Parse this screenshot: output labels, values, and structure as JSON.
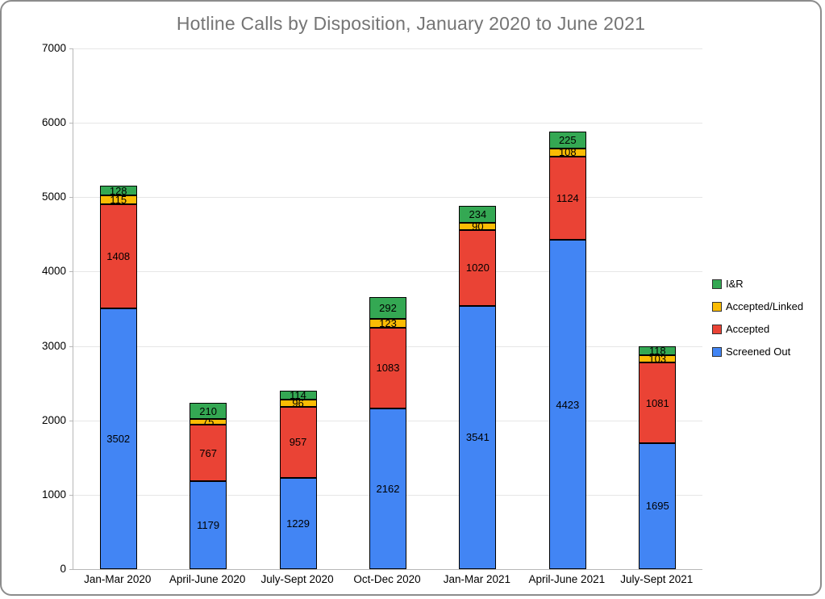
{
  "chart_data": {
    "type": "bar",
    "variant": "stacked-vertical",
    "title": "Hotline Calls by Disposition, January 2020 to June 2021",
    "title_color": "#757575",
    "categories": [
      "Jan-Mar 2020",
      "April-June 2020",
      "July-Sept 2020",
      "Oct-Dec 2020",
      "Jan-Mar 2021",
      "April-June 2021",
      "July-Sept 2021"
    ],
    "series": [
      {
        "name": "Screened Out",
        "color": "#4285f4",
        "values": [
          3502,
          1179,
          1229,
          2162,
          3541,
          4423,
          1695
        ]
      },
      {
        "name": "Accepted",
        "color": "#ea4335",
        "values": [
          1408,
          767,
          957,
          1083,
          1020,
          1124,
          1081
        ]
      },
      {
        "name": "Accepted/Linked",
        "color": "#fbbc04",
        "values": [
          115,
          75,
          96,
          123,
          90,
          108,
          103
        ]
      },
      {
        "name": "I&R",
        "color": "#34a853",
        "values": [
          128,
          210,
          114,
          292,
          234,
          225,
          118
        ]
      }
    ],
    "data_labels_shown": true,
    "xlabel": "",
    "ylabel": "",
    "ylim": [
      0,
      7000
    ],
    "y_ticks": [
      0,
      1000,
      2000,
      3000,
      4000,
      5000,
      6000,
      7000
    ],
    "grid": "horizontal",
    "legend_position": "right",
    "legend_order": [
      "I&R",
      "Accepted/Linked",
      "Accepted",
      "Screened Out"
    ]
  }
}
